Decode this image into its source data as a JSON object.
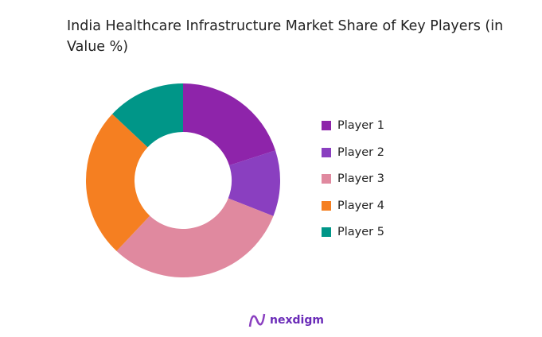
{
  "chart_data": {
    "type": "pie",
    "donut": true,
    "title": "India Healthcare Infrastructure Market Share of Key Players (in Value %)",
    "categories": [
      "Player 1",
      "Player 2",
      "Player 3",
      "Player 4",
      "Player 5"
    ],
    "values": [
      20,
      11,
      31,
      25,
      13
    ],
    "colors": [
      "#8e24aa",
      "#8a3fc0",
      "#e0899f",
      "#f57f21",
      "#009688"
    ],
    "legend": "right"
  },
  "logo": {
    "text": "nexdigm"
  }
}
